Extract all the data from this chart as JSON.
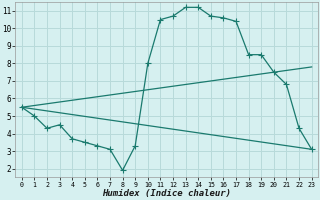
{
  "xlabel": "Humidex (Indice chaleur)",
  "bg_color": "#d6f0f0",
  "grid_color": "#b8dada",
  "line_color": "#1a7a6e",
  "xlim": [
    -0.5,
    23.5
  ],
  "ylim": [
    1.5,
    11.5
  ],
  "xticks": [
    0,
    1,
    2,
    3,
    4,
    5,
    6,
    7,
    8,
    9,
    10,
    11,
    12,
    13,
    14,
    15,
    16,
    17,
    18,
    19,
    20,
    21,
    22,
    23
  ],
  "yticks": [
    2,
    3,
    4,
    5,
    6,
    7,
    8,
    9,
    10,
    11
  ],
  "line1_x": [
    0,
    1,
    2,
    3,
    4,
    5,
    6,
    7,
    8,
    9,
    10,
    11,
    12,
    13,
    14,
    15,
    16,
    17,
    18,
    19,
    20,
    21,
    22,
    23
  ],
  "line1_y": [
    5.5,
    5.0,
    4.3,
    4.5,
    3.7,
    3.5,
    3.3,
    3.1,
    1.9,
    3.3,
    8.0,
    10.5,
    10.7,
    11.2,
    11.2,
    10.7,
    10.6,
    10.4,
    8.5,
    8.5,
    7.5,
    6.8,
    4.3,
    3.1
  ],
  "line2_x": [
    0,
    23
  ],
  "line2_y": [
    5.5,
    7.8
  ],
  "line3_x": [
    0,
    23
  ],
  "line3_y": [
    5.5,
    3.1
  ],
  "markersize": 2.5
}
